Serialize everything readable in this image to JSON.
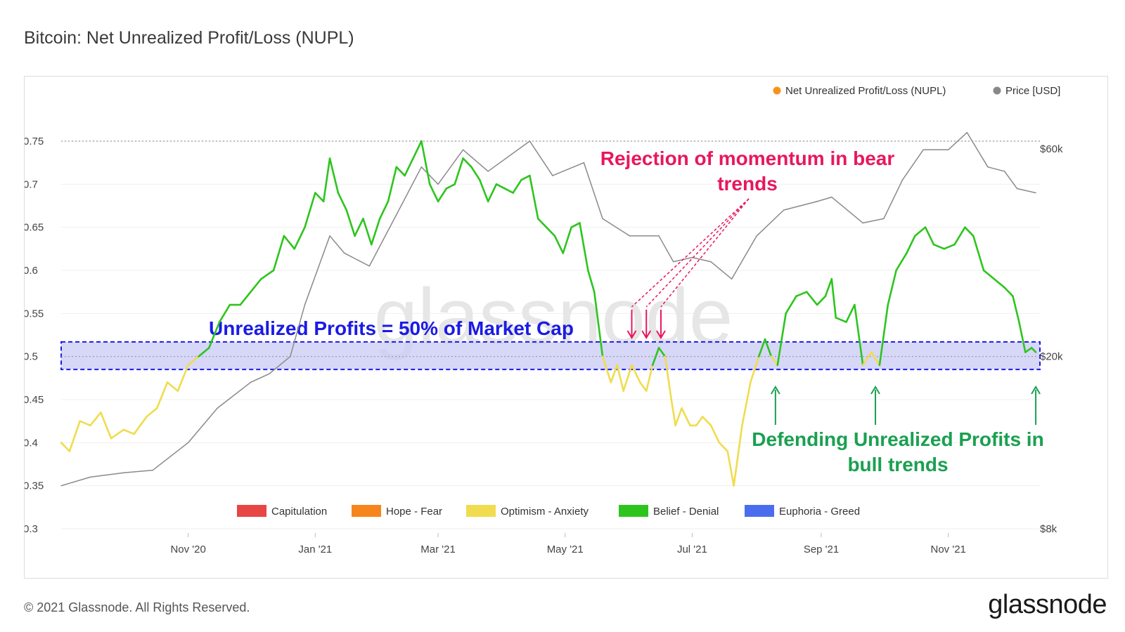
{
  "page": {
    "title": "Bitcoin: Net Unrealized Profit/Loss (NUPL)",
    "copyright": "© 2021 Glassnode. All Rights Reserved.",
    "logo": "glassnode",
    "watermark": "glassnode"
  },
  "chart_data": {
    "type": "line",
    "title": "Bitcoin: Net Unrealized Profit/Loss (NUPL)",
    "x_ticks": [
      "Nov '20",
      "Jan '21",
      "Mar '21",
      "May '21",
      "Jul '21",
      "Sep '21",
      "Nov '21"
    ],
    "y_left_ticks": [
      "0.75",
      "0.7",
      "0.65",
      "0.6",
      "0.55",
      "0.5",
      "0.45",
      "0.4",
      "0.35",
      "0.3"
    ],
    "y_right_ticks": [
      "$60k",
      "$20k",
      "$8k"
    ],
    "ylim_left": [
      0.3,
      0.77
    ],
    "xlim": [
      "2020-09-01",
      "2021-12-15"
    ],
    "series": [
      {
        "name": "Net Unrealized Profit/Loss (NUPL)",
        "axis": "left",
        "legend_color": "#f7931a",
        "points": [
          [
            "2020-09-01",
            0.4
          ],
          [
            "2020-09-05",
            0.39
          ],
          [
            "2020-09-10",
            0.425
          ],
          [
            "2020-09-15",
            0.42
          ],
          [
            "2020-09-20",
            0.435
          ],
          [
            "2020-09-25",
            0.405
          ],
          [
            "2020-10-01",
            0.415
          ],
          [
            "2020-10-06",
            0.41
          ],
          [
            "2020-10-12",
            0.43
          ],
          [
            "2020-10-17",
            0.44
          ],
          [
            "2020-10-22",
            0.47
          ],
          [
            "2020-10-27",
            0.46
          ],
          [
            "2020-11-01",
            0.49
          ],
          [
            "2020-11-06",
            0.5
          ],
          [
            "2020-11-11",
            0.51
          ],
          [
            "2020-11-16",
            0.54
          ],
          [
            "2020-11-21",
            0.56
          ],
          [
            "2020-11-26",
            0.56
          ],
          [
            "2020-12-01",
            0.575
          ],
          [
            "2020-12-06",
            0.59
          ],
          [
            "2020-12-12",
            0.6
          ],
          [
            "2020-12-17",
            0.64
          ],
          [
            "2020-12-22",
            0.625
          ],
          [
            "2020-12-27",
            0.65
          ],
          [
            "2021-01-01",
            0.69
          ],
          [
            "2021-01-05",
            0.68
          ],
          [
            "2021-01-08",
            0.73
          ],
          [
            "2021-01-12",
            0.69
          ],
          [
            "2021-01-16",
            0.67
          ],
          [
            "2021-01-20",
            0.64
          ],
          [
            "2021-01-24",
            0.66
          ],
          [
            "2021-01-28",
            0.63
          ],
          [
            "2021-02-01",
            0.66
          ],
          [
            "2021-02-05",
            0.68
          ],
          [
            "2021-02-09",
            0.72
          ],
          [
            "2021-02-13",
            0.71
          ],
          [
            "2021-02-17",
            0.73
          ],
          [
            "2021-02-21",
            0.75
          ],
          [
            "2021-02-25",
            0.7
          ],
          [
            "2021-03-01",
            0.68
          ],
          [
            "2021-03-05",
            0.695
          ],
          [
            "2021-03-09",
            0.7
          ],
          [
            "2021-03-13",
            0.73
          ],
          [
            "2021-03-17",
            0.72
          ],
          [
            "2021-03-21",
            0.705
          ],
          [
            "2021-03-25",
            0.68
          ],
          [
            "2021-03-29",
            0.7
          ],
          [
            "2021-04-02",
            0.695
          ],
          [
            "2021-04-06",
            0.69
          ],
          [
            "2021-04-10",
            0.705
          ],
          [
            "2021-04-14",
            0.71
          ],
          [
            "2021-04-18",
            0.66
          ],
          [
            "2021-04-22",
            0.65
          ],
          [
            "2021-04-26",
            0.64
          ],
          [
            "2021-04-30",
            0.62
          ],
          [
            "2021-05-04",
            0.65
          ],
          [
            "2021-05-08",
            0.655
          ],
          [
            "2021-05-12",
            0.6
          ],
          [
            "2021-05-15",
            0.575
          ],
          [
            "2021-05-19",
            0.5
          ],
          [
            "2021-05-23",
            0.47
          ],
          [
            "2021-05-26",
            0.49
          ],
          [
            "2021-05-29",
            0.46
          ],
          [
            "2021-06-02",
            0.49
          ],
          [
            "2021-06-06",
            0.47
          ],
          [
            "2021-06-09",
            0.46
          ],
          [
            "2021-06-12",
            0.49
          ],
          [
            "2021-06-15",
            0.51
          ],
          [
            "2021-06-18",
            0.5
          ],
          [
            "2021-06-21",
            0.45
          ],
          [
            "2021-06-23",
            0.42
          ],
          [
            "2021-06-26",
            0.44
          ],
          [
            "2021-06-30",
            0.42
          ],
          [
            "2021-07-03",
            0.42
          ],
          [
            "2021-07-06",
            0.43
          ],
          [
            "2021-07-10",
            0.42
          ],
          [
            "2021-07-14",
            0.4
          ],
          [
            "2021-07-18",
            0.39
          ],
          [
            "2021-07-21",
            0.35
          ],
          [
            "2021-07-25",
            0.42
          ],
          [
            "2021-07-29",
            0.47
          ],
          [
            "2021-08-02",
            0.5
          ],
          [
            "2021-08-05",
            0.52
          ],
          [
            "2021-08-08",
            0.5
          ],
          [
            "2021-08-11",
            0.49
          ],
          [
            "2021-08-15",
            0.55
          ],
          [
            "2021-08-20",
            0.57
          ],
          [
            "2021-08-25",
            0.575
          ],
          [
            "2021-08-30",
            0.56
          ],
          [
            "2021-09-03",
            0.57
          ],
          [
            "2021-09-06",
            0.59
          ],
          [
            "2021-09-08",
            0.545
          ],
          [
            "2021-09-13",
            0.54
          ],
          [
            "2021-09-17",
            0.56
          ],
          [
            "2021-09-21",
            0.49
          ],
          [
            "2021-09-25",
            0.505
          ],
          [
            "2021-09-29",
            0.49
          ],
          [
            "2021-10-03",
            0.56
          ],
          [
            "2021-10-07",
            0.6
          ],
          [
            "2021-10-12",
            0.62
          ],
          [
            "2021-10-16",
            0.64
          ],
          [
            "2021-10-21",
            0.65
          ],
          [
            "2021-10-25",
            0.63
          ],
          [
            "2021-10-30",
            0.625
          ],
          [
            "2021-11-04",
            0.63
          ],
          [
            "2021-11-09",
            0.65
          ],
          [
            "2021-11-13",
            0.64
          ],
          [
            "2021-11-18",
            0.6
          ],
          [
            "2021-11-23",
            0.59
          ],
          [
            "2021-11-28",
            0.58
          ],
          [
            "2021-12-02",
            0.57
          ],
          [
            "2021-12-05",
            0.54
          ],
          [
            "2021-12-08",
            0.505
          ],
          [
            "2021-12-11",
            0.51
          ],
          [
            "2021-12-13",
            0.505
          ]
        ]
      },
      {
        "name": "Price [USD]",
        "axis": "right",
        "legend_color": "#888888",
        "points": [
          [
            "2020-09-01",
            0.35
          ],
          [
            "2020-09-15",
            0.36
          ],
          [
            "2020-10-01",
            0.365
          ],
          [
            "2020-10-15",
            0.368
          ],
          [
            "2020-11-01",
            0.4
          ],
          [
            "2020-11-15",
            0.44
          ],
          [
            "2020-12-01",
            0.47
          ],
          [
            "2020-12-10",
            0.48
          ],
          [
            "2020-12-20",
            0.5
          ],
          [
            "2020-12-27",
            0.56
          ],
          [
            "2021-01-08",
            0.64
          ],
          [
            "2021-01-15",
            0.62
          ],
          [
            "2021-01-27",
            0.605
          ],
          [
            "2021-02-08",
            0.66
          ],
          [
            "2021-02-21",
            0.72
          ],
          [
            "2021-03-01",
            0.7
          ],
          [
            "2021-03-13",
            0.74
          ],
          [
            "2021-03-25",
            0.715
          ],
          [
            "2021-04-14",
            0.75
          ],
          [
            "2021-04-25",
            0.71
          ],
          [
            "2021-05-10",
            0.725
          ],
          [
            "2021-05-19",
            0.66
          ],
          [
            "2021-06-01",
            0.64
          ],
          [
            "2021-06-15",
            0.64
          ],
          [
            "2021-06-22",
            0.61
          ],
          [
            "2021-07-01",
            0.615
          ],
          [
            "2021-07-10",
            0.61
          ],
          [
            "2021-07-20",
            0.59
          ],
          [
            "2021-08-01",
            0.64
          ],
          [
            "2021-08-14",
            0.67
          ],
          [
            "2021-08-30",
            0.68
          ],
          [
            "2021-09-06",
            0.685
          ],
          [
            "2021-09-21",
            0.655
          ],
          [
            "2021-10-01",
            0.66
          ],
          [
            "2021-10-10",
            0.705
          ],
          [
            "2021-10-20",
            0.74
          ],
          [
            "2021-11-01",
            0.74
          ],
          [
            "2021-11-10",
            0.76
          ],
          [
            "2021-11-20",
            0.72
          ],
          [
            "2021-11-28",
            0.715
          ],
          [
            "2021-12-04",
            0.695
          ],
          [
            "2021-12-13",
            0.69
          ]
        ]
      }
    ],
    "reference_lines": [
      0.75,
      0.5
    ],
    "band": {
      "from": 0.485,
      "to": 0.517,
      "label": "Unrealized Profits = 50% of Market Cap",
      "color": "#1a1ae6"
    },
    "zones": [
      {
        "label": "Capitulation",
        "color": "#e84545"
      },
      {
        "label": "Hope - Fear",
        "color": "#f7851d"
      },
      {
        "label": "Optimism - Anxiety",
        "color": "#f0dc4e"
      },
      {
        "label": "Belief - Denial",
        "color": "#2dc51d"
      },
      {
        "label": "Euphoria - Greed",
        "color": "#4a6df0"
      }
    ],
    "zone_threshold": 0.5,
    "annotations": [
      {
        "id": "bear",
        "lines": [
          "Rejection of momentum in bear",
          "trends"
        ],
        "color": "#e8175d",
        "dates": [
          "2021-06-02",
          "2021-06-09",
          "2021-06-16"
        ],
        "direction": "down"
      },
      {
        "id": "bull",
        "lines": [
          "Defending Unrealized Profits in",
          "bull trends"
        ],
        "color": "#1aa050",
        "dates": [
          "2021-08-10",
          "2021-09-27",
          "2021-12-13"
        ],
        "direction": "up"
      }
    ]
  }
}
